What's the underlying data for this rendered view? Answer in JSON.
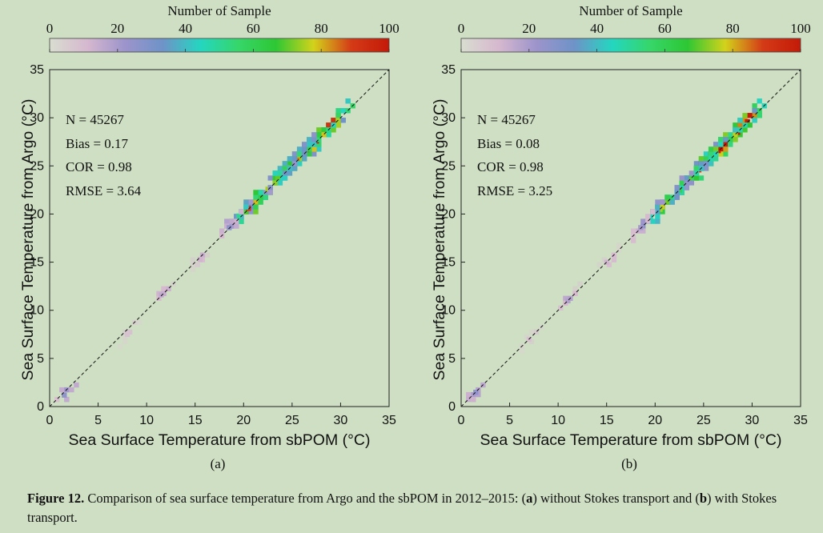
{
  "chart_data": [
    {
      "type": "heatmap",
      "panel_label": "(a)",
      "xlabel": "Sea Surface Temperature from sbPOM (°C)",
      "ylabel": "Sea Surface Temperature from Argo (°C)",
      "xlim": [
        0,
        35
      ],
      "ylim": [
        0,
        35
      ],
      "xticks": [
        0,
        5,
        10,
        15,
        20,
        25,
        30,
        35
      ],
      "yticks": [
        0,
        5,
        10,
        15,
        20,
        25,
        30,
        35
      ],
      "reference_line": "1:1 dashed",
      "colorbar": {
        "title": "Number of Sample",
        "range": [
          0,
          100
        ],
        "ticks": [
          0,
          20,
          40,
          60,
          80,
          100
        ]
      },
      "stats": {
        "N": "N = 45267",
        "Bias": "Bias = 0.17",
        "COR": "COR = 0.98",
        "RMSE": "RMSE = 3.64"
      },
      "density_core": [
        {
          "x": 29.5,
          "y": 29.6,
          "count": 100
        },
        {
          "x": 28.5,
          "y": 28.5,
          "count": 100
        },
        {
          "x": 27.5,
          "y": 27.6,
          "count": 100
        },
        {
          "x": 26.5,
          "y": 26.7,
          "count": 95
        },
        {
          "x": 25.5,
          "y": 25.6,
          "count": 85
        },
        {
          "x": 24.5,
          "y": 24.8,
          "count": 80
        },
        {
          "x": 23.5,
          "y": 23.8,
          "count": 70
        },
        {
          "x": 22.5,
          "y": 22.6,
          "count": 75
        },
        {
          "x": 21.5,
          "y": 21.6,
          "count": 60
        },
        {
          "x": 20.5,
          "y": 20.6,
          "count": 90
        },
        {
          "x": 19.5,
          "y": 19.8,
          "count": 50
        },
        {
          "x": 18.5,
          "y": 18.6,
          "count": 25
        },
        {
          "x": 15.5,
          "y": 15.3,
          "count": 12
        },
        {
          "x": 11.5,
          "y": 11.6,
          "count": 15
        },
        {
          "x": 8.0,
          "y": 7.5,
          "count": 8
        },
        {
          "x": 1.5,
          "y": 1.2,
          "count": 25
        }
      ]
    },
    {
      "type": "heatmap",
      "panel_label": "(b)",
      "xlabel": "Sea Surface Temperature from sbPOM (°C)",
      "ylabel": "Sea Surface Temperature from Argo (°C)",
      "xlim": [
        0,
        35
      ],
      "ylim": [
        0,
        35
      ],
      "xticks": [
        0,
        5,
        10,
        15,
        20,
        25,
        30,
        35
      ],
      "yticks": [
        0,
        5,
        10,
        15,
        20,
        25,
        30,
        35
      ],
      "reference_line": "1:1 dashed",
      "colorbar": {
        "title": "Number of Sample",
        "range": [
          0,
          100
        ],
        "ticks": [
          0,
          20,
          40,
          60,
          80,
          100
        ]
      },
      "stats": {
        "N": "N = 45267",
        "Bias": "Bias = 0.08",
        "COR": "COR = 0.98",
        "RMSE": "RMSE = 3.25"
      },
      "density_core": [
        {
          "x": 29.5,
          "y": 29.6,
          "count": 100
        },
        {
          "x": 28.5,
          "y": 28.5,
          "count": 100
        },
        {
          "x": 27.5,
          "y": 27.5,
          "count": 100
        },
        {
          "x": 26.5,
          "y": 26.6,
          "count": 100
        },
        {
          "x": 25.5,
          "y": 25.6,
          "count": 95
        },
        {
          "x": 24.5,
          "y": 24.6,
          "count": 90
        },
        {
          "x": 23.5,
          "y": 23.6,
          "count": 70
        },
        {
          "x": 22.5,
          "y": 22.5,
          "count": 60
        },
        {
          "x": 21.5,
          "y": 21.6,
          "count": 60
        },
        {
          "x": 20.5,
          "y": 20.5,
          "count": 75
        },
        {
          "x": 19.5,
          "y": 19.7,
          "count": 45
        },
        {
          "x": 18.5,
          "y": 18.6,
          "count": 20
        },
        {
          "x": 15.0,
          "y": 15.0,
          "count": 12
        },
        {
          "x": 11.0,
          "y": 11.0,
          "count": 18
        },
        {
          "x": 7.0,
          "y": 7.0,
          "count": 8
        },
        {
          "x": 1.5,
          "y": 1.5,
          "count": 25
        }
      ]
    }
  ],
  "caption": {
    "label": "Figure 12.",
    "text_1": " Comparison of sea surface temperature from Argo and the sbPOM in 2012–2015: (",
    "a": "a",
    "text_2": ") without Stokes transport and (",
    "b": "b",
    "text_3": ") with Stokes transport."
  },
  "colors": {
    "background": "#cfdfc4",
    "colormap": [
      "#d9ddd0",
      "#d6b8cf",
      "#9c94cb",
      "#6e93c8",
      "#24d6c0",
      "#36d66a",
      "#2ec734",
      "#d3d21b",
      "#d43a17",
      "#c41a08"
    ]
  }
}
